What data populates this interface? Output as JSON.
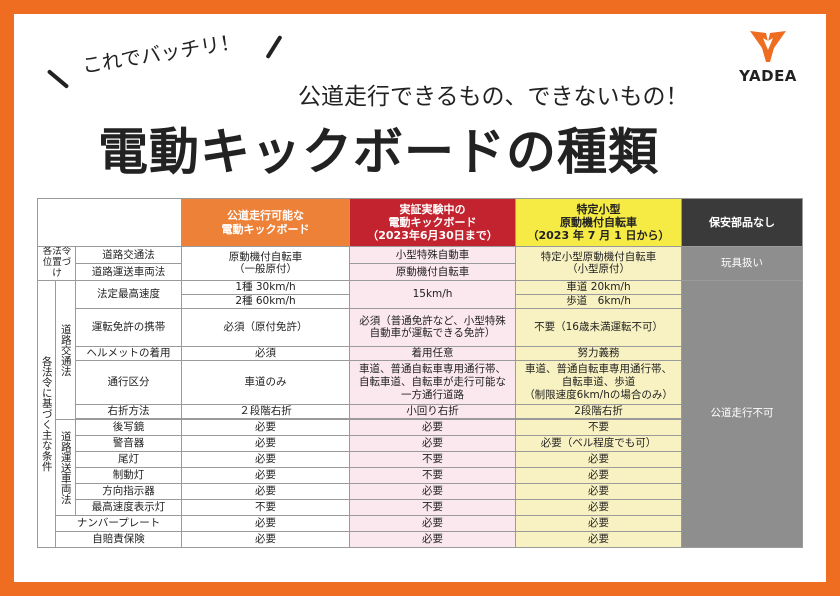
{
  "header": {
    "catchphrase": "これでバッチリ！",
    "subtitle": "公道走行できるもの、できないもの！",
    "title": "電動キックボードの種類",
    "logo_text": "YADEA"
  },
  "colors": {
    "frame": "#ee6d21",
    "col_public_road": "#ee8138",
    "col_experiment": "#c2232e",
    "col_specified": "#f6ea44",
    "col_no_safety": "#3a3a3a"
  },
  "table": {
    "columns": [
      "公道走行可能な\n電動キックボード",
      "実証実験中の\n電動キックボード\n（2023年6月30日まで）",
      "特定小型\n原動機付自転車\n（2023 年 7 月 1 日から）",
      "保安部品なし"
    ],
    "groups": {
      "positioning": "各法令位置づけ",
      "conditions": "各法令に基づく主な条件",
      "road_traffic": "道路交通法",
      "vehicle_transport": "道路運送車両法"
    },
    "labels": {
      "road_traffic_law": "道路交通法",
      "vehicle_transport_law": "道路運送車両法",
      "max_speed": "法定最高速度",
      "license": "運転免許の携帯",
      "helmet": "ヘルメットの着用",
      "lane": "通行区分",
      "right_turn": "右折方法",
      "mirror": "後写鏡",
      "horn": "警音器",
      "taillight": "尾灯",
      "brake_light": "制動灯",
      "indicator": "方向指示器",
      "speed_display": "最高速度表示灯",
      "number_plate": "ナンバープレート",
      "insurance": "自賠責保険"
    },
    "col_a": {
      "positioning": "原動機付自転車\n（一般原付）",
      "speed_1": "1種 30km/h",
      "speed_2": "2種 60km/h",
      "license": "必須（原付免許）",
      "helmet": "必須",
      "lane": "車道のみ",
      "right_turn": "２段階右折",
      "mirror": "必要",
      "horn": "必要",
      "taillight": "必要",
      "brake_light": "必要",
      "indicator": "必要",
      "speed_display": "不要",
      "number_plate": "必要",
      "insurance": "必要"
    },
    "col_b": {
      "road_traffic_law": "小型特殊自動車",
      "vehicle_transport_law": "原動機付自転車",
      "speed": "15km/h",
      "license": "必須（普通免許など、小型特殊\n自動車が運転できる免許）",
      "helmet": "着用任意",
      "lane": "車道、普通自転車専用通行帯、\n自転車道、自転車が走行可能な\n一方通行道路",
      "right_turn": "小回り右折",
      "mirror": "必要",
      "horn": "必要",
      "taillight": "不要",
      "brake_light": "不要",
      "indicator": "必要",
      "speed_display": "不要",
      "number_plate": "必要",
      "insurance": "必要"
    },
    "col_c": {
      "positioning": "特定小型原動機付自転車\n（小型原付）",
      "speed_1": "車道 20km/h",
      "speed_2": "歩道　6km/h",
      "license": "不要（16歳未満運転不可）",
      "helmet": "努力義務",
      "lane": "車道、普通自転車専用通行帯、\n自転車道、歩道\n（制限速度6km/hの場合のみ）",
      "right_turn": "2段階右折",
      "mirror": "不要",
      "horn": "必要（ベル程度でも可）",
      "taillight": "必要",
      "brake_light": "必要",
      "indicator": "必要",
      "speed_display": "必要",
      "number_plate": "必要",
      "insurance": "必要"
    },
    "col_d": {
      "positioning": "玩具扱い",
      "conditions": "公道走行不可"
    }
  }
}
